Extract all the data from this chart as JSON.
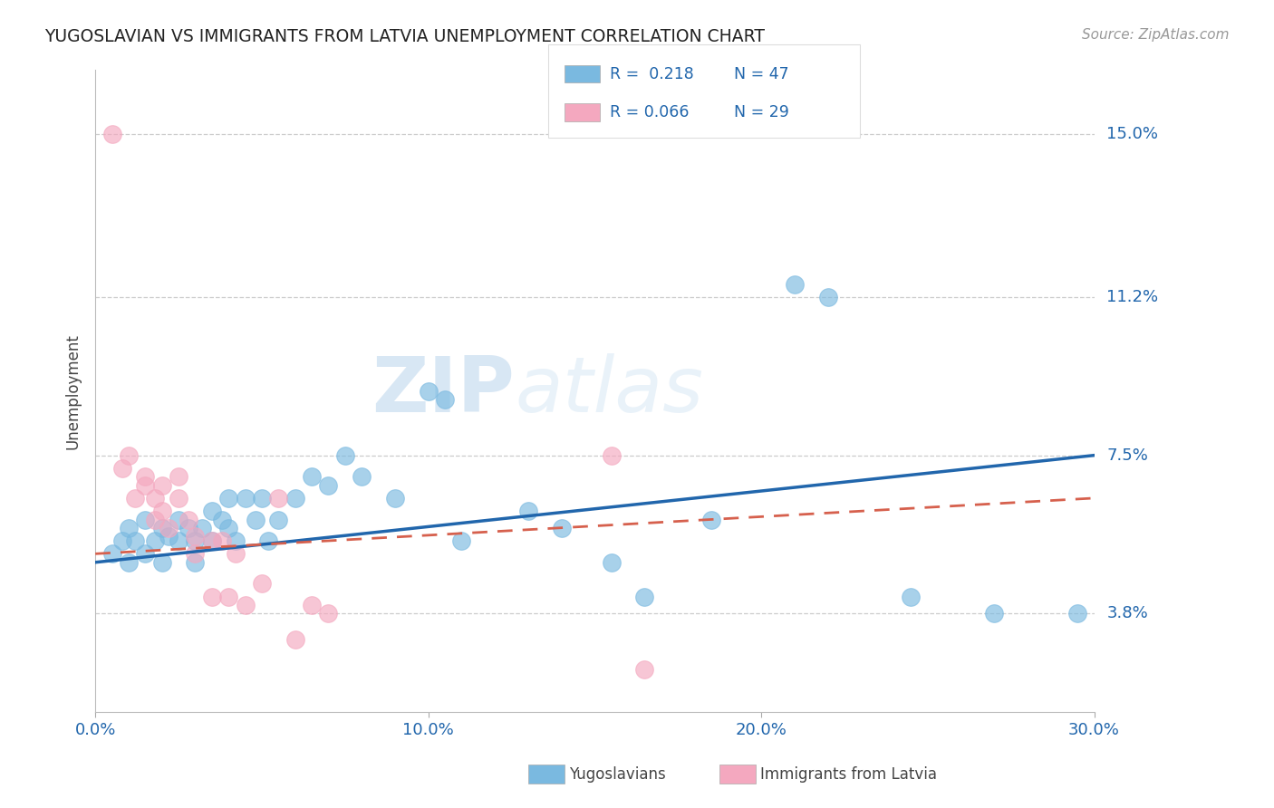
{
  "title": "YUGOSLAVIAN VS IMMIGRANTS FROM LATVIA UNEMPLOYMENT CORRELATION CHART",
  "source": "Source: ZipAtlas.com",
  "ylabel": "Unemployment",
  "x_min": 0.0,
  "x_max": 0.3,
  "y_min": 0.015,
  "y_max": 0.165,
  "y_ticks": [
    0.038,
    0.075,
    0.112,
    0.15
  ],
  "y_tick_labels": [
    "3.8%",
    "7.5%",
    "11.2%",
    "15.0%"
  ],
  "x_ticks": [
    0.0,
    0.1,
    0.2,
    0.3
  ],
  "x_tick_labels": [
    "0.0%",
    "10.0%",
    "20.0%",
    "30.0%"
  ],
  "blue_color": "#7ab9e0",
  "pink_color": "#f4a8bf",
  "blue_line_color": "#2166ac",
  "pink_line_color": "#d6604d",
  "legend_R_blue": "R =  0.218",
  "legend_N_blue": "N = 47",
  "legend_R_pink": "R = 0.066",
  "legend_N_pink": "N = 29",
  "watermark_zip": "ZIP",
  "watermark_atlas": "atlas",
  "blue_scatter_x": [
    0.005,
    0.008,
    0.01,
    0.01,
    0.012,
    0.015,
    0.015,
    0.018,
    0.02,
    0.02,
    0.022,
    0.025,
    0.025,
    0.028,
    0.03,
    0.03,
    0.032,
    0.035,
    0.035,
    0.038,
    0.04,
    0.04,
    0.042,
    0.045,
    0.048,
    0.05,
    0.052,
    0.055,
    0.06,
    0.065,
    0.07,
    0.075,
    0.08,
    0.09,
    0.1,
    0.105,
    0.11,
    0.13,
    0.14,
    0.155,
    0.165,
    0.185,
    0.21,
    0.22,
    0.245,
    0.27,
    0.295
  ],
  "blue_scatter_y": [
    0.052,
    0.055,
    0.058,
    0.05,
    0.055,
    0.052,
    0.06,
    0.055,
    0.058,
    0.05,
    0.056,
    0.055,
    0.06,
    0.058,
    0.055,
    0.05,
    0.058,
    0.062,
    0.055,
    0.06,
    0.058,
    0.065,
    0.055,
    0.065,
    0.06,
    0.065,
    0.055,
    0.06,
    0.065,
    0.07,
    0.068,
    0.075,
    0.07,
    0.065,
    0.09,
    0.088,
    0.055,
    0.062,
    0.058,
    0.05,
    0.042,
    0.06,
    0.115,
    0.112,
    0.042,
    0.038,
    0.038
  ],
  "pink_scatter_x": [
    0.005,
    0.008,
    0.01,
    0.012,
    0.015,
    0.015,
    0.018,
    0.018,
    0.02,
    0.02,
    0.022,
    0.025,
    0.025,
    0.028,
    0.03,
    0.03,
    0.035,
    0.035,
    0.038,
    0.04,
    0.042,
    0.045,
    0.05,
    0.055,
    0.06,
    0.065,
    0.07,
    0.155,
    0.165
  ],
  "pink_scatter_y": [
    0.15,
    0.072,
    0.075,
    0.065,
    0.07,
    0.068,
    0.065,
    0.06,
    0.068,
    0.062,
    0.058,
    0.065,
    0.07,
    0.06,
    0.056,
    0.052,
    0.055,
    0.042,
    0.055,
    0.042,
    0.052,
    0.04,
    0.045,
    0.065,
    0.032,
    0.04,
    0.038,
    0.075,
    0.025
  ]
}
